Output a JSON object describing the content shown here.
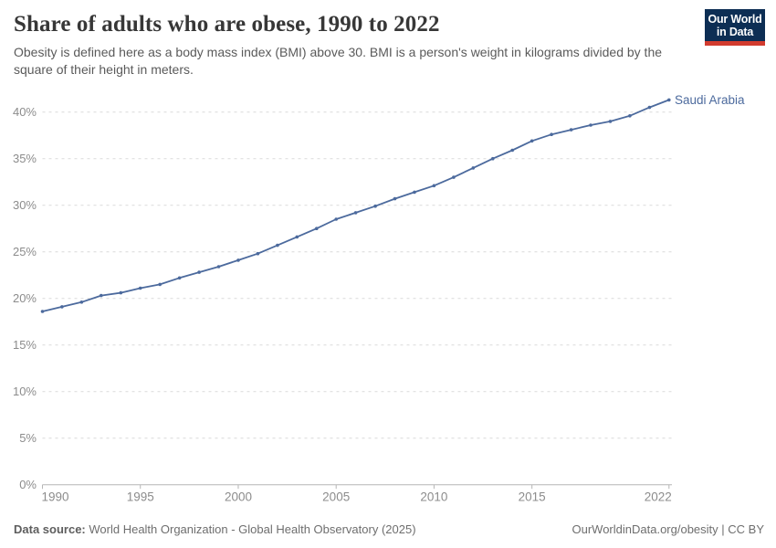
{
  "header": {
    "title": "Share of adults who are obese, 1990 to 2022",
    "subtitle": "Obesity is defined here as a body mass index (BMI) above 30. BMI is a person's weight in kilograms divided by the square of their height in meters.",
    "logo": {
      "line1": "Our World",
      "line2": "in Data"
    }
  },
  "chart_data": {
    "type": "line",
    "title": "Share of adults who are obese, 1990 to 2022",
    "entity": "Saudi Arabia",
    "xlabel": "",
    "ylabel": "",
    "unit": "%",
    "x": [
      1990,
      1991,
      1992,
      1993,
      1994,
      1995,
      1996,
      1997,
      1998,
      1999,
      2000,
      2001,
      2002,
      2003,
      2004,
      2005,
      2006,
      2007,
      2008,
      2009,
      2010,
      2011,
      2012,
      2013,
      2014,
      2015,
      2016,
      2017,
      2018,
      2019,
      2020,
      2021,
      2022
    ],
    "series": [
      {
        "name": "Saudi Arabia",
        "values": [
          18.6,
          19.1,
          19.6,
          20.3,
          20.6,
          21.1,
          21.5,
          22.2,
          22.8,
          23.4,
          24.1,
          24.8,
          25.7,
          26.6,
          27.5,
          28.5,
          29.2,
          29.9,
          30.7,
          31.4,
          32.1,
          33.0,
          34.0,
          35.0,
          35.9,
          36.9,
          37.6,
          38.1,
          38.6,
          39.0,
          39.6,
          40.5,
          41.3
        ]
      }
    ],
    "ylim": [
      0,
      45
    ],
    "xlim": [
      1990,
      2022
    ],
    "yticks": [
      0,
      5,
      10,
      15,
      20,
      25,
      30,
      35,
      40
    ],
    "ytick_labels": [
      "0%",
      "5%",
      "10%",
      "15%",
      "20%",
      "25%",
      "30%",
      "35%",
      "40%"
    ],
    "xticks": [
      1990,
      1995,
      2000,
      2005,
      2010,
      2015,
      2022
    ],
    "grid": true,
    "legend_position": "end-of-line-label",
    "line_color": "#4c6a9d"
  },
  "footer": {
    "data_source_label": "Data source:",
    "data_source_text": "World Health Organization - Global Health Observatory (2025)",
    "attribution": "OurWorldinData.org/obesity | CC BY"
  },
  "colors": {
    "line": "#4c6a9d",
    "logo_navy": "#0d2e54",
    "logo_red": "#d23b2e",
    "grid": "#dadada",
    "axis": "#b6b6b6",
    "tick_text": "#8c8c8c",
    "title_text": "#373737",
    "subtitle_text": "#5a5a5a",
    "footer_text": "#6e6e6e"
  }
}
